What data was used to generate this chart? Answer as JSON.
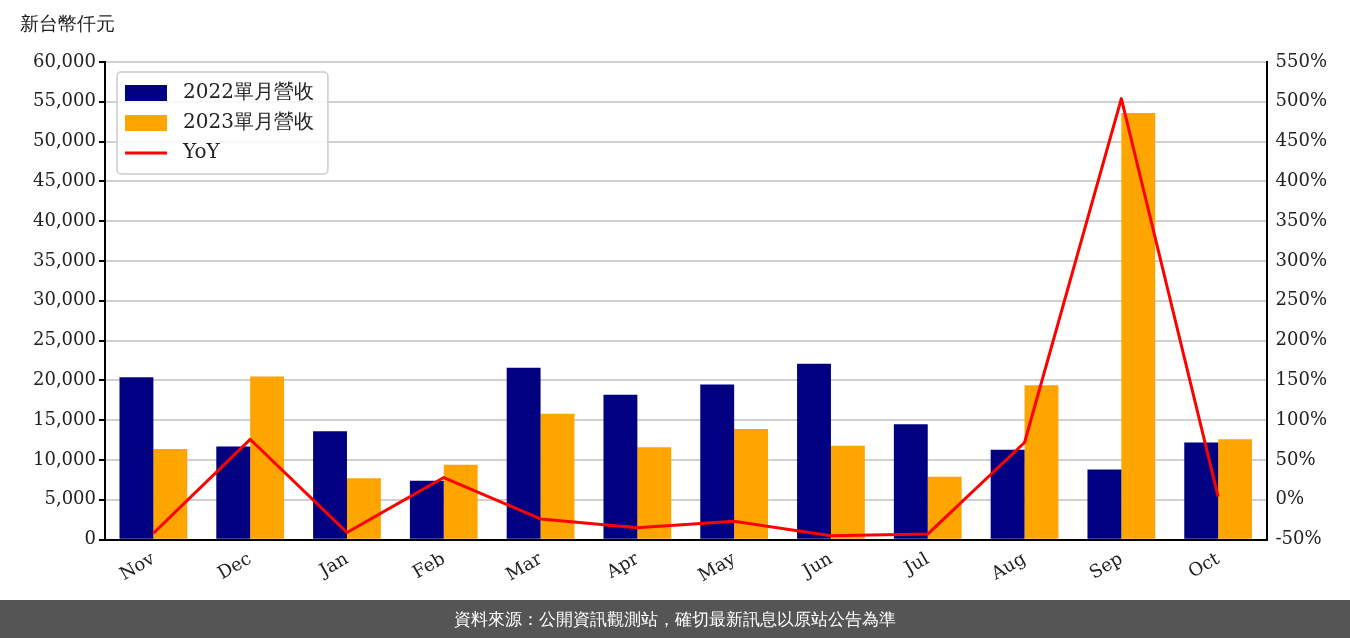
{
  "chart_data": {
    "type": "bar",
    "ylabel": "新台幣仟元",
    "categories": [
      "Nov",
      "Dec",
      "Jan",
      "Feb",
      "Mar",
      "Apr",
      "May",
      "Jun",
      "Jul",
      "Aug",
      "Sep",
      "Oct"
    ],
    "series": [
      {
        "name": "2022單月營收",
        "color": "#000080",
        "values": [
          20400,
          11700,
          13600,
          7400,
          21600,
          18200,
          19500,
          22100,
          14500,
          11300,
          8800,
          12200
        ]
      },
      {
        "name": "2023單月營收",
        "color": "#ffa500",
        "values": [
          11400,
          20500,
          7700,
          9400,
          15800,
          11600,
          13900,
          11800,
          7900,
          19400,
          53600,
          12600
        ]
      },
      {
        "name": "YoY",
        "type": "line",
        "axis": "y2",
        "color": "#ff0000",
        "marker": "none",
        "values": [
          -42,
          76,
          -41,
          28,
          -24,
          -35,
          -27,
          -45,
          -43,
          72,
          504,
          4
        ]
      }
    ],
    "ylim": [
      0,
      60000
    ],
    "yticks": [
      {
        "value": 0,
        "label": "0"
      },
      {
        "value": 5000,
        "label": "5,000"
      },
      {
        "value": 10000,
        "label": "10,000"
      },
      {
        "value": 15000,
        "label": "15,000"
      },
      {
        "value": 20000,
        "label": "20,000"
      },
      {
        "value": 25000,
        "label": "25,000"
      },
      {
        "value": 30000,
        "label": "30,000"
      },
      {
        "value": 35000,
        "label": "35,000"
      },
      {
        "value": 40000,
        "label": "40,000"
      },
      {
        "value": 45000,
        "label": "45,000"
      },
      {
        "value": 50000,
        "label": "50,000"
      },
      {
        "value": 55000,
        "label": "55,000"
      },
      {
        "value": 60000,
        "label": "60,000"
      }
    ],
    "y2lim": [
      -50,
      550
    ],
    "y2ticks": [
      {
        "value": -50,
        "label": "-50%"
      },
      {
        "value": 0,
        "label": "0%"
      },
      {
        "value": 50,
        "label": "50%"
      },
      {
        "value": 100,
        "label": "100%"
      },
      {
        "value": 150,
        "label": "150%"
      },
      {
        "value": 200,
        "label": "200%"
      },
      {
        "value": 250,
        "label": "250%"
      },
      {
        "value": 300,
        "label": "300%"
      },
      {
        "value": 350,
        "label": "350%"
      },
      {
        "value": 400,
        "label": "400%"
      },
      {
        "value": 450,
        "label": "450%"
      },
      {
        "value": 500,
        "label": "500%"
      },
      {
        "value": 550,
        "label": "550%"
      }
    ],
    "grid": "y",
    "legend": "top left",
    "annotations": [
      "資料來源：公開資訊觀測站，確切最新訊息以原站公告為準"
    ]
  }
}
